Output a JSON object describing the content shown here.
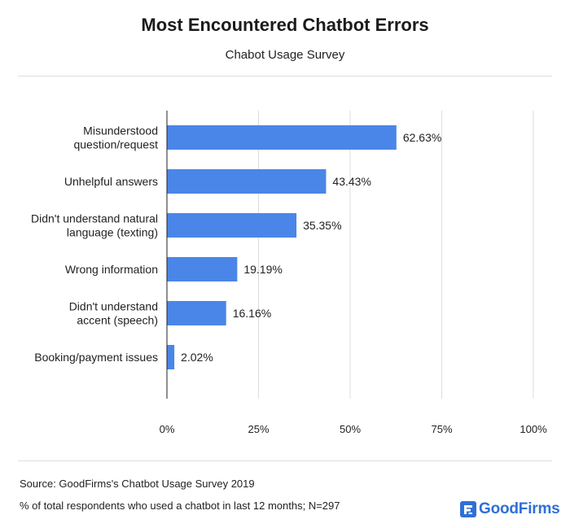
{
  "header": {
    "title": "Most Encountered Chatbot Errors",
    "subtitle": "Chabot Usage Survey"
  },
  "footer": {
    "source": "Source: GoodFirms's Chatbot Usage Survey 2019",
    "note": "% of total respondents who used a chatbot in last 12 months; N=297",
    "logo_text": "GoodFirms",
    "logo_icon": "goodfirms-logo-icon"
  },
  "colors": {
    "bar": "#4a86e8",
    "axis": "#222222",
    "grid": "#dddddd",
    "brand": "#2f6fd6"
  },
  "chart_data": {
    "type": "bar",
    "orientation": "horizontal",
    "title": "Most Encountered Chatbot Errors",
    "subtitle": "Chabot Usage Survey",
    "categories": [
      [
        "Misunderstood",
        "question/request"
      ],
      [
        "Unhelpful answers"
      ],
      [
        "Didn't understand natural",
        "language (texting)"
      ],
      [
        "Wrong information"
      ],
      [
        "Didn't understand",
        "accent (speech)"
      ],
      [
        "Booking/payment issues"
      ]
    ],
    "values": [
      62.63,
      43.43,
      35.35,
      19.19,
      16.16,
      2.02
    ],
    "value_labels": [
      "62.63%",
      "43.43%",
      "35.35%",
      "19.19%",
      "16.16%",
      "2.02%"
    ],
    "xlim": [
      0,
      100
    ],
    "x_ticks": [
      0,
      25,
      50,
      75,
      100
    ],
    "x_tick_labels": [
      "0%",
      "25%",
      "50%",
      "75%",
      "100%"
    ],
    "grid": true
  }
}
